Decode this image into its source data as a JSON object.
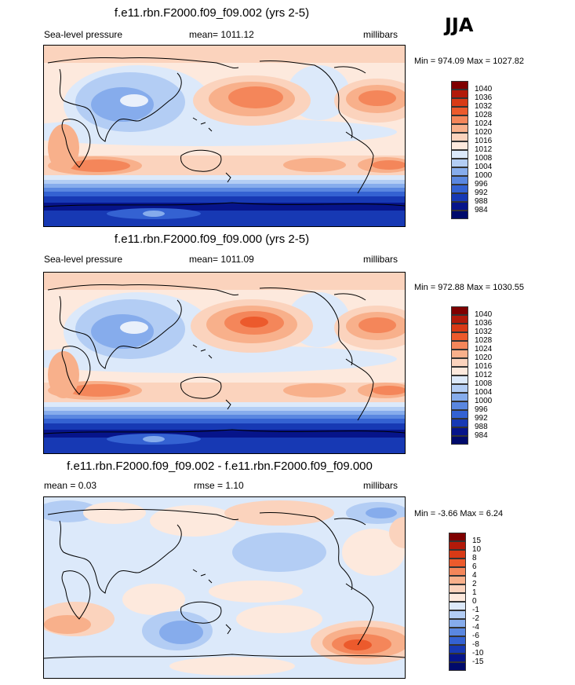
{
  "season": "JJA",
  "panels": [
    {
      "title": "f.e11.rbn.F2000.f09_f09.002 (yrs 2-5)",
      "left_label": "Sea-level pressure",
      "center_label": "mean= 1011.12",
      "units": "millibars",
      "minmax": "Min = 974.09 Max = 1027.82",
      "legend": [
        "1040",
        "1036",
        "1032",
        "1028",
        "1024",
        "1020",
        "1016",
        "1012",
        "1008",
        "1004",
        "1000",
        "996",
        "992",
        "988",
        "984"
      ]
    },
    {
      "title": "f.e11.rbn.F2000.f09_f09.000 (yrs 2-5)",
      "left_label": "Sea-level pressure",
      "center_label": "mean= 1011.09",
      "units": "millibars",
      "minmax": "Min = 972.88 Max = 1030.55",
      "legend": [
        "1040",
        "1036",
        "1032",
        "1028",
        "1024",
        "1020",
        "1016",
        "1012",
        "1008",
        "1004",
        "1000",
        "996",
        "992",
        "988",
        "984"
      ]
    },
    {
      "title": "f.e11.rbn.F2000.f09_f09.002 - f.e11.rbn.F2000.f09_f09.000",
      "left_label": "mean =   0.03",
      "center_label": "rmse =   1.10",
      "units": "millibars",
      "minmax": "Min =  -3.66 Max =   6.24",
      "legend": [
        "15",
        "10",
        "8",
        "6",
        "4",
        "2",
        "1",
        "0",
        "-1",
        "-2",
        "-4",
        "-6",
        "-8",
        "-10",
        "-15"
      ]
    }
  ],
  "colors": {
    "abs_scale": [
      "#7f0000",
      "#b21a0a",
      "#d83a16",
      "#ec5a2c",
      "#f4865a",
      "#f8b08b",
      "#fbd3bd",
      "#fde9dd",
      "#dce9fa",
      "#b3cdf4",
      "#86acec",
      "#5a87e0",
      "#3462d2",
      "#1739b4",
      "#06148a",
      "#000a6b"
    ],
    "diff_scale": [
      "#7f0000",
      "#b21a0a",
      "#d83a16",
      "#ec5a2c",
      "#f4865a",
      "#f8b08b",
      "#fbd3bd",
      "#fde9dd",
      "#dce9fa",
      "#b3cdf4",
      "#86acec",
      "#5a87e0",
      "#3462d2",
      "#1739b4",
      "#06148a",
      "#000a6b"
    ]
  }
}
